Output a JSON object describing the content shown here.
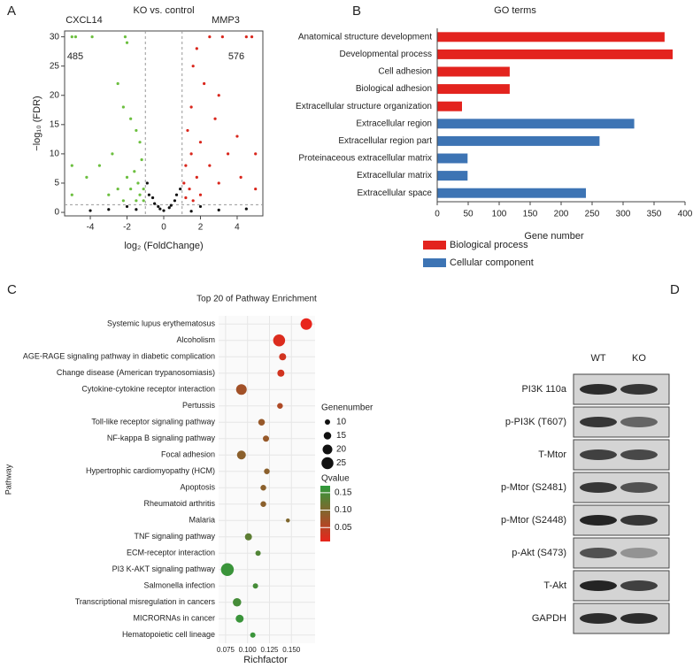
{
  "panel_labels": [
    "A",
    "B",
    "C",
    "D"
  ],
  "chart_data": [
    {
      "type": "scatter",
      "title": "KO vs. control",
      "xlabel": "log₂ (FoldChange)",
      "ylabel": "−log₁₀ (FDR)",
      "xlim": [
        -5.4,
        5.4
      ],
      "xticks": [
        -4,
        -2,
        0,
        2,
        4
      ],
      "ylim": [
        -0.6,
        31
      ],
      "yticks": [
        0,
        5,
        10,
        15,
        20,
        25,
        30
      ],
      "vlines": [
        -1,
        1
      ],
      "hline": 1.3,
      "annotations": [
        {
          "gene": "CXCL14",
          "count": 485
        },
        {
          "gene": "MMP3",
          "count": 576
        }
      ],
      "series": [
        {
          "color": "#6cbf3f",
          "x": [
            -5,
            -4.8,
            -3.9,
            -2.1,
            -2,
            -2.5,
            -2.2,
            -1.8,
            -1.5,
            -1.3,
            -2.8,
            -3.5,
            -4.2,
            -1.2,
            -1.6,
            -2,
            -1.4,
            -1.1,
            -1.8,
            -2.5,
            -3,
            -1.3,
            -1.5,
            -2.2,
            -5,
            -5,
            -1.1
          ],
          "values": [
            30,
            30,
            30,
            30,
            29,
            22,
            18,
            16,
            14,
            12,
            10,
            8,
            6,
            9,
            7,
            6,
            5,
            4,
            4,
            4,
            3,
            3,
            2,
            2,
            3,
            8,
            2
          ]
        },
        {
          "color": "#d9261c",
          "x": [
            4.8,
            4.5,
            3.2,
            2.5,
            1.8,
            1.6,
            2.2,
            3,
            1.5,
            2.8,
            1.3,
            4,
            2,
            3.5,
            1.5,
            1.2,
            2.5,
            1.8,
            1.1,
            3,
            1.4,
            2,
            1.2,
            5,
            5,
            4.2,
            1.6
          ],
          "values": [
            30,
            30,
            30,
            30,
            28,
            25,
            22,
            20,
            18,
            16,
            14,
            13,
            12,
            10,
            10,
            8,
            8,
            6,
            5,
            5,
            4,
            3,
            2.5,
            4,
            10,
            6,
            2
          ]
        },
        {
          "color": "#111111",
          "x": [
            -0.8,
            -0.5,
            -0.2,
            0,
            0.3,
            0.6,
            0.9,
            -0.9,
            0.7,
            -0.6,
            -3,
            -4,
            3,
            4.5,
            -2,
            2,
            1.5,
            -1.5,
            0.4,
            -0.3
          ],
          "values": [
            3,
            1.5,
            0.6,
            0.3,
            0.8,
            2,
            4,
            5,
            3,
            2.5,
            0.5,
            0.3,
            0.4,
            0.6,
            1,
            1,
            0.2,
            0.5,
            1.2,
            1
          ]
        }
      ]
    },
    {
      "type": "bar",
      "orientation": "horizontal",
      "title": "GO terms",
      "xlabel": "Gene number",
      "categories": [
        "Anatomical structure development",
        "Developmental process",
        "Cell adhesion",
        "Biological adhesion",
        "Extracellular structure organization",
        "Extracellular region",
        "Extracellular region part",
        "Proteinaceous extracellular matrix",
        "Extracellular matrix",
        "Extracellular space"
      ],
      "series": [
        {
          "name": "Biological process",
          "color": "#e3231e",
          "values": [
            367,
            380,
            117,
            117,
            40,
            null,
            null,
            null,
            null,
            null
          ]
        },
        {
          "name": "Cellular component",
          "color": "#3d74b4",
          "values": [
            null,
            null,
            null,
            null,
            null,
            318,
            262,
            49,
            49,
            240
          ]
        }
      ],
      "xlim": [
        0,
        400
      ],
      "xticks": [
        0,
        50,
        100,
        150,
        200,
        250,
        300,
        350,
        400
      ]
    },
    {
      "type": "bubble",
      "title": "Top 20 of Pathway Enrichment",
      "xlabel": "Richfactor",
      "ylabel": "Pathway",
      "grid": true,
      "categories": [
        "Systemic lupus erythematosus",
        "Alcoholism",
        "AGE-RAGE signaling pathway in diabetic complication",
        "Change disease (American trypanosomiasis)",
        "Cytokine-cytokine receptor interaction",
        "Pertussis",
        "Toll-like receptor signaling pathway",
        "NF-kappa B signaling pathway",
        "Focal adhesion",
        "Hypertrophic cardiomyopathy (HCM)",
        "Apoptosis",
        "Rheumatoid arthritis",
        "Malaria",
        "TNF signaling pathway",
        "ECM-receptor interaction",
        "PI3 K-AKT signaling pathway",
        "Salmonella infection",
        "Transcriptional misregulation in cancers",
        "MICRORNAs in cancer",
        "Hematopoietic cell lineage"
      ],
      "x": [
        0.167,
        0.136,
        0.14,
        0.138,
        0.093,
        0.137,
        0.116,
        0.121,
        0.093,
        0.122,
        0.118,
        0.118,
        0.146,
        0.101,
        0.112,
        0.077,
        0.109,
        0.088,
        0.091,
        0.106
      ],
      "sizes": [
        24,
        25,
        14,
        14,
        22,
        11,
        13,
        12,
        18,
        11,
        11,
        11,
        7,
        14,
        10,
        27,
        10,
        17,
        16,
        10
      ],
      "qvalues": [
        0.01,
        0.02,
        0.03,
        0.03,
        0.07,
        0.06,
        0.08,
        0.08,
        0.09,
        0.09,
        0.09,
        0.09,
        0.1,
        0.13,
        0.14,
        0.16,
        0.15,
        0.15,
        0.16,
        0.16
      ],
      "xlim": [
        0.067,
        0.177
      ],
      "xticks": [
        0.075,
        {
          "value": 0.1,
          "label": "0.100"
        },
        0.125,
        {
          "value": 0.15,
          "label": "0.150"
        }
      ],
      "size_legend": {
        "title": "Genenumber",
        "values": [
          10,
          15,
          20,
          25
        ]
      },
      "color_legend": {
        "title": "Qvalue",
        "lim": [
          0.01,
          0.17
        ],
        "colors": [
          "#e8251c",
          "#2e9b3c"
        ],
        "ticks": [
          0.15,
          {
            "value": 0.1,
            "label": "0.10"
          },
          0.05
        ]
      }
    }
  ],
  "blot": {
    "lanes": [
      "WT",
      "KO"
    ],
    "rows": [
      "PI3K 110a",
      "p-PI3K (T607)",
      "T-Mtor",
      "p-Mtor (S2481)",
      "p-Mtor (S2448)",
      "p-Akt (S473)",
      "T-Akt",
      "GAPDH"
    ]
  }
}
